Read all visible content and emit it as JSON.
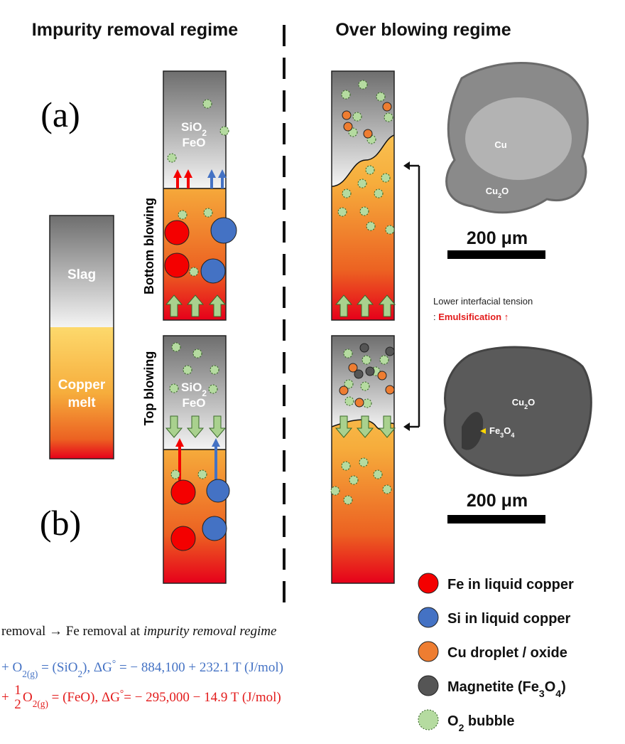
{
  "headings": {
    "left": "Impurity removal regime",
    "right": "Over blowing regime"
  },
  "panel_labels": {
    "a": "(a)",
    "b": "(b)"
  },
  "reference": {
    "slag": "Slag",
    "melt": [
      "Copper",
      "melt"
    ]
  },
  "side_labels": {
    "bottom": "Bottom blowing",
    "top": "Top blowing"
  },
  "slag_species": {
    "top": [
      "SiO",
      "2",
      "FeO"
    ],
    "bottom": [
      "SiO",
      "2",
      "FeO"
    ]
  },
  "micrographs": [
    {
      "labels": [
        [
          "Cu"
        ],
        [
          "Cu",
          "2",
          "O"
        ]
      ],
      "scale": "200 μm"
    },
    {
      "labels": [
        [
          "Cu",
          "2",
          "O"
        ],
        [
          "Fe",
          "3",
          "O",
          "4"
        ]
      ],
      "scale": "200 μm"
    }
  ],
  "note": {
    "line1": "Lower interfacial tension",
    "prefix": ": ",
    "emphasis": "Emulsification ↑"
  },
  "legend": [
    [
      "Fe in liquid copper"
    ],
    [
      "Si in liquid copper"
    ],
    [
      "Cu droplet / oxide"
    ],
    [
      "Magnetite (Fe",
      "3",
      "O",
      "4",
      ")"
    ],
    [
      "O",
      "2",
      " bubble"
    ]
  ],
  "equations": [
    [
      "removal → Fe removal at ",
      "impurity removal regime"
    ],
    [
      "+ O",
      "2(g)",
      " = (SiO",
      "2",
      "),   ΔG",
      "°",
      " = − 884,100 + 232.1 T (J/mol)"
    ],
    [
      "+ ",
      "1",
      "2",
      "O",
      "2(g)",
      " = (FeO),   ΔG",
      "°",
      "= − 295,000 − 14.9 T (J/mol)"
    ]
  ]
}
